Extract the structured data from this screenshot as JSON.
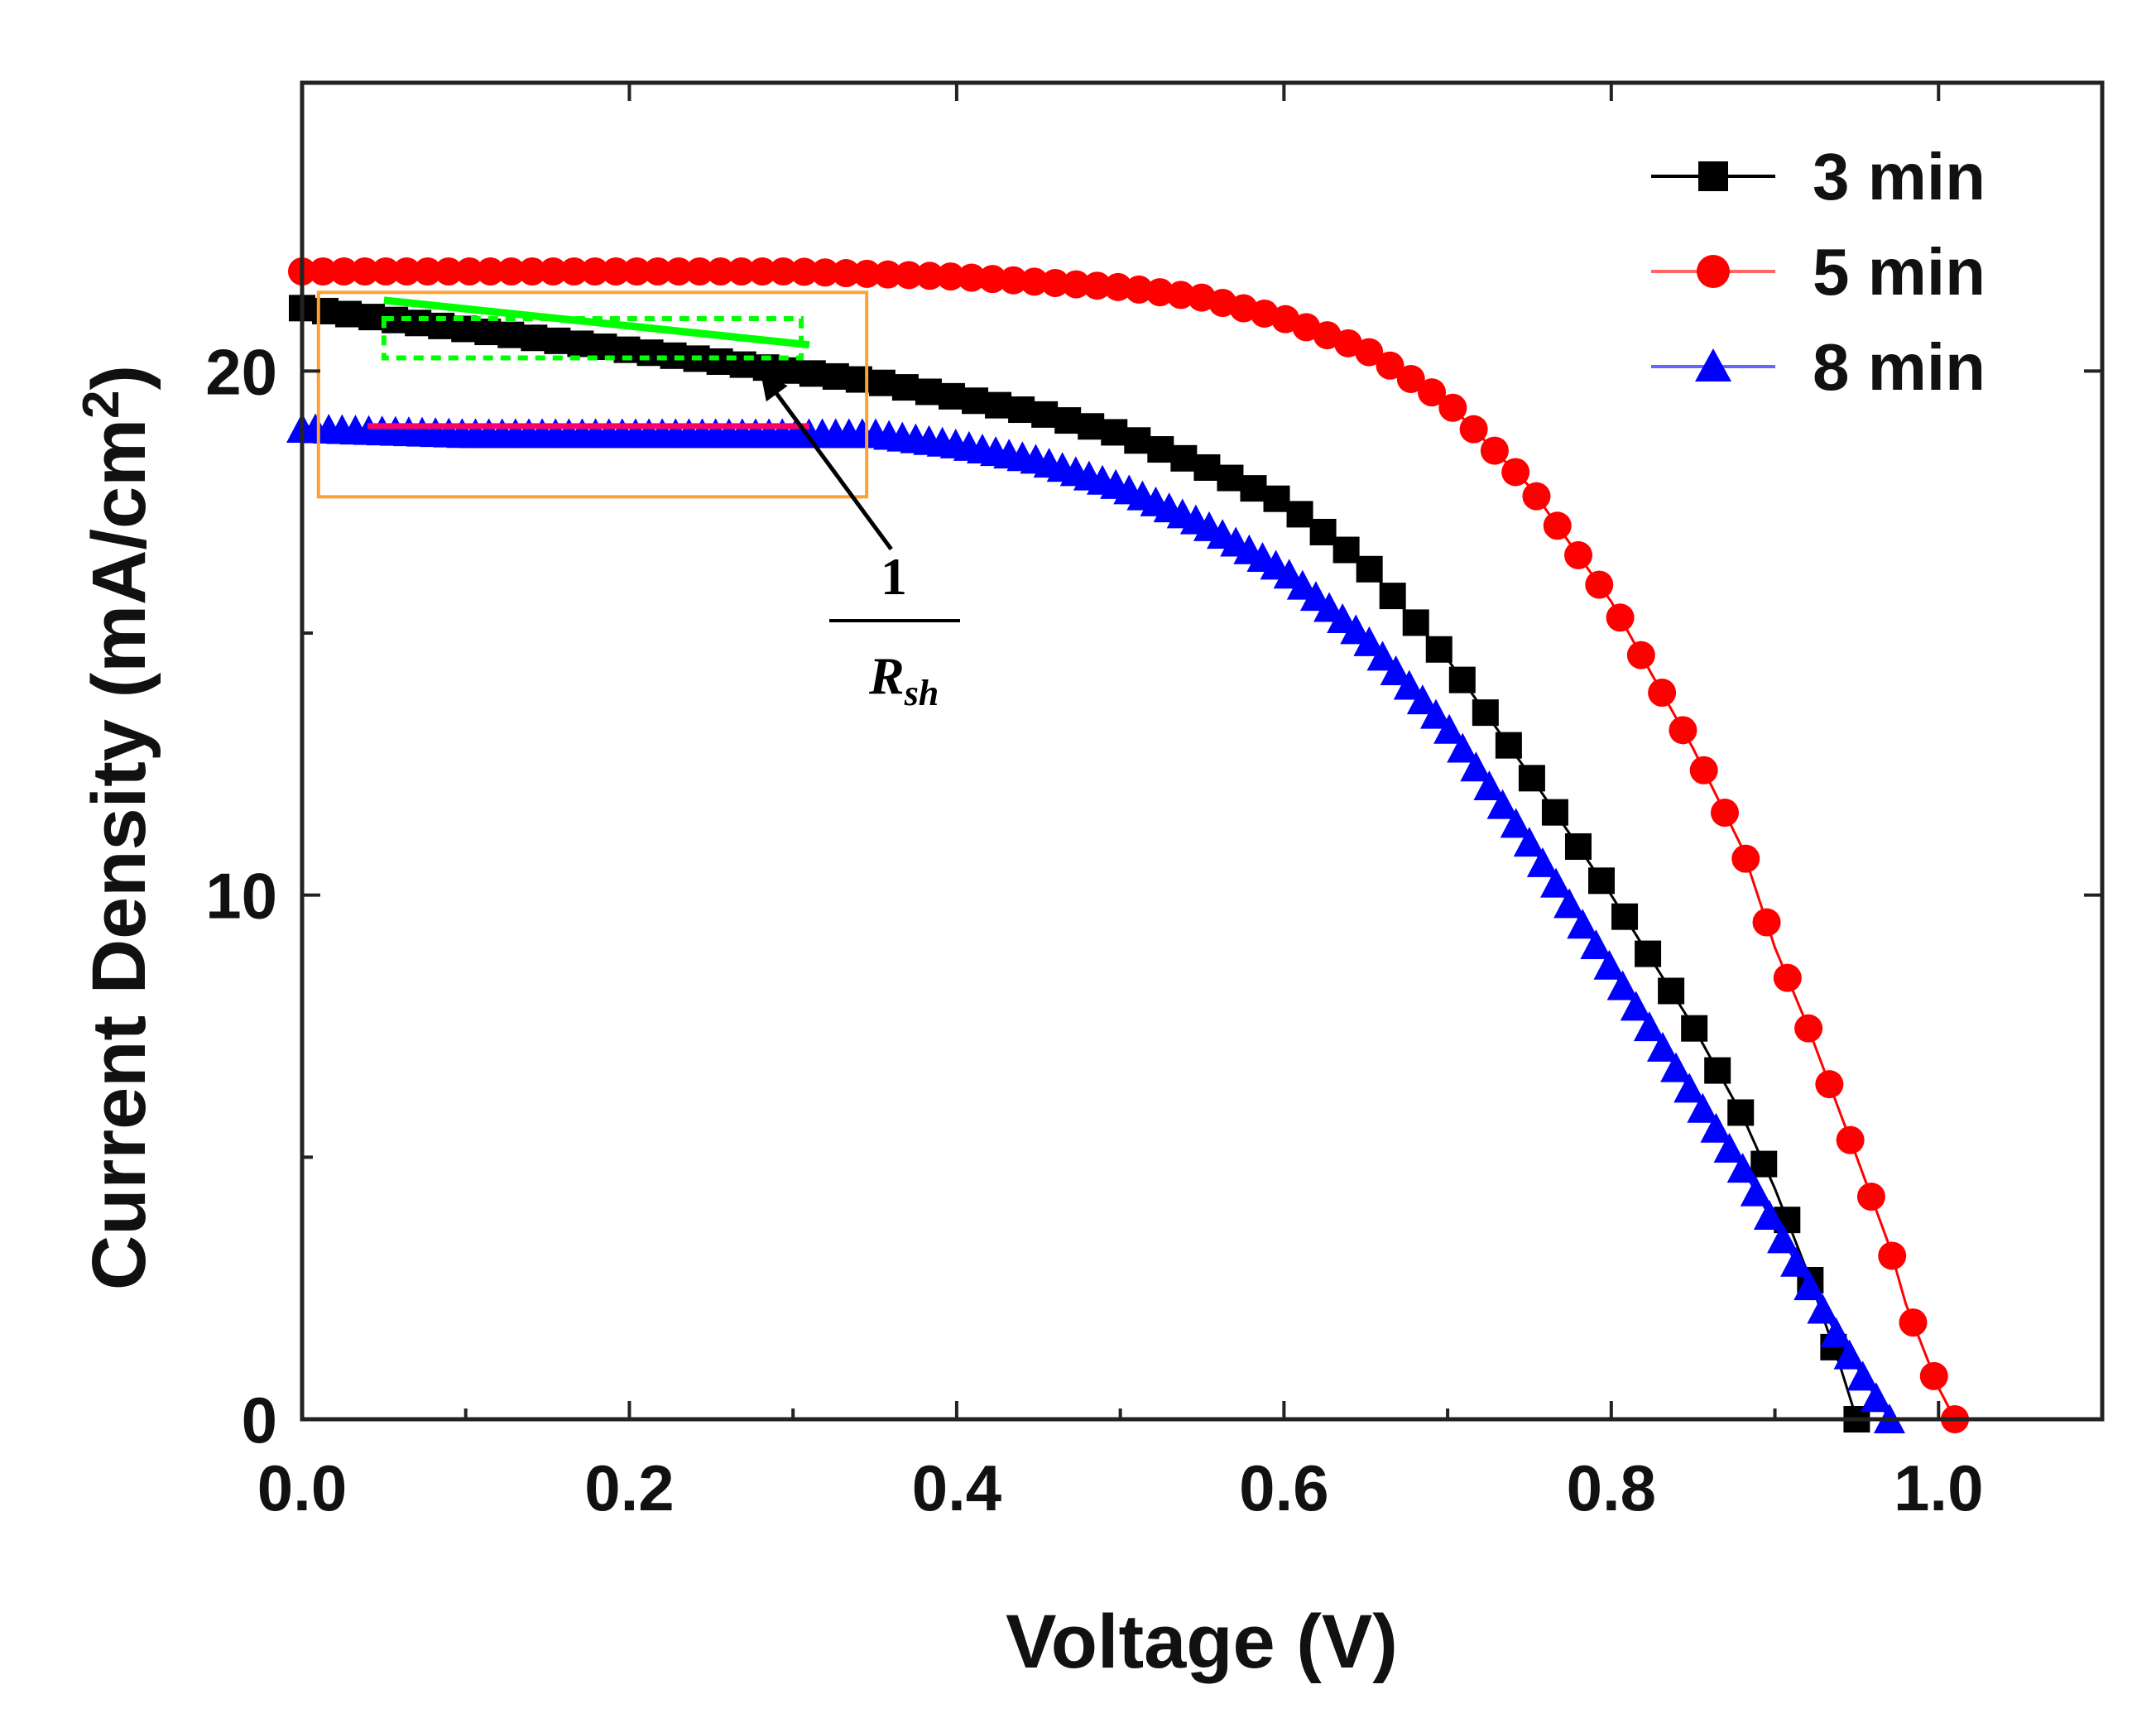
{
  "chart_data": {
    "type": "line",
    "xlabel": "Voltage (V)",
    "ylabel_main": "Current Density (mA/cm",
    "ylabel_sup": "2",
    "ylabel_close": ")",
    "xlim": [
      0.0,
      1.1
    ],
    "ylim": [
      0,
      25.5
    ],
    "x_ticks": [
      0.0,
      0.2,
      0.4,
      0.6,
      0.8,
      1.0
    ],
    "x_tick_labels": [
      "0.0",
      "0.2",
      "0.4",
      "0.6",
      "0.8",
      "1.0"
    ],
    "y_ticks": [
      0,
      10,
      20
    ],
    "y_tick_labels": [
      "0",
      "10",
      "20"
    ],
    "legend_position": "top-right",
    "series": [
      {
        "name": "3 min",
        "color": "#000000",
        "marker": "square",
        "x": [
          0.0,
          0.1,
          0.2,
          0.3,
          0.35,
          0.4,
          0.45,
          0.5,
          0.55,
          0.6,
          0.65,
          0.7,
          0.75,
          0.8,
          0.85,
          0.88,
          0.9,
          0.92,
          0.94,
          0.95
        ],
        "y": [
          21.2,
          20.8,
          20.4,
          20.0,
          19.8,
          19.5,
          19.2,
          18.8,
          18.2,
          17.5,
          16.3,
          14.5,
          12.3,
          10.0,
          7.5,
          5.8,
          4.4,
          2.8,
          1.0,
          0.0
        ]
      },
      {
        "name": "5 min",
        "color": "#ff0000",
        "marker": "circle",
        "x": [
          0.0,
          0.1,
          0.2,
          0.3,
          0.4,
          0.45,
          0.5,
          0.55,
          0.6,
          0.65,
          0.7,
          0.75,
          0.8,
          0.85,
          0.88,
          0.9,
          0.92,
          0.95,
          0.97,
          0.98,
          0.99,
          1.0,
          1.01
        ],
        "y": [
          21.9,
          21.9,
          21.9,
          21.9,
          21.8,
          21.7,
          21.6,
          21.4,
          21.0,
          20.4,
          19.4,
          17.8,
          15.6,
          12.8,
          10.9,
          9.0,
          7.5,
          5.0,
          3.3,
          2.2,
          1.4,
          0.6,
          0.0
        ]
      },
      {
        "name": "8 min",
        "color": "#0000ff",
        "marker": "triangle",
        "x": [
          0.0,
          0.1,
          0.2,
          0.3,
          0.35,
          0.4,
          0.45,
          0.5,
          0.55,
          0.6,
          0.65,
          0.7,
          0.75,
          0.8,
          0.85,
          0.88,
          0.9,
          0.92,
          0.94,
          0.96,
          0.97
        ],
        "y": [
          18.9,
          18.8,
          18.8,
          18.8,
          18.8,
          18.6,
          18.3,
          17.8,
          17.1,
          16.2,
          14.9,
          13.2,
          11.0,
          8.6,
          6.2,
          4.8,
          3.7,
          2.6,
          1.5,
          0.5,
          0.0
        ]
      }
    ],
    "annotation": {
      "numerator": "1",
      "denominator_main": "R",
      "denominator_sub": "sh",
      "tangent_color": "#00ff00",
      "reference_line_color": "#ff0066",
      "box_color": "#ffa033",
      "arrow_color": "#000000"
    }
  }
}
